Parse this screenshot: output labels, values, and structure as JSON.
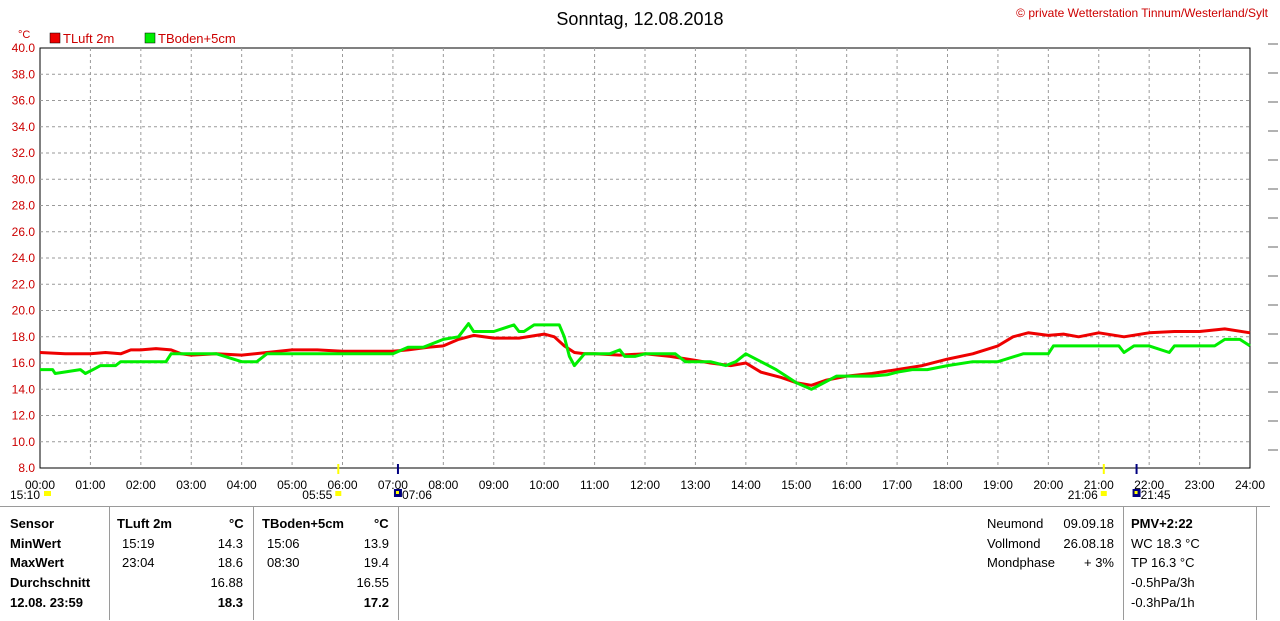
{
  "header": {
    "title": "Sonntag, 12.08.2018",
    "copyright": "© private Wetterstation Tinnum/Westerland/Sylt",
    "unit": "°C"
  },
  "chart_data": {
    "type": "line",
    "title": "Sonntag, 12.08.2018",
    "ylabel": "°C",
    "ylim": [
      8.0,
      40.0
    ],
    "yticks": [
      "8.0",
      "10.0",
      "12.0",
      "14.0",
      "16.0",
      "18.0",
      "20.0",
      "22.0",
      "24.0",
      "26.0",
      "28.0",
      "30.0",
      "32.0",
      "34.0",
      "36.0",
      "38.0",
      "40.0"
    ],
    "xlim": [
      0,
      24
    ],
    "xticks": [
      "00:00",
      "01:00",
      "02:00",
      "03:00",
      "04:00",
      "05:00",
      "06:00",
      "07:00",
      "08:00",
      "09:00",
      "10:00",
      "11:00",
      "12:00",
      "13:00",
      "14:00",
      "15:00",
      "16:00",
      "17:00",
      "18:00",
      "19:00",
      "20:00",
      "21:00",
      "22:00",
      "23:00",
      "24:00"
    ],
    "grid": true,
    "legend_position": "top-left",
    "series": [
      {
        "name": "TLuft 2m",
        "color": "#ee0000",
        "x": [
          0,
          0.5,
          1,
          1.3,
          1.6,
          1.8,
          2.0,
          2.3,
          2.6,
          2.8,
          3.0,
          3.5,
          4.0,
          4.5,
          5.0,
          5.5,
          6.0,
          6.5,
          7.0,
          7.3,
          7.7,
          8.0,
          8.3,
          8.6,
          9.0,
          9.5,
          10.0,
          10.2,
          10.4,
          10.6,
          10.8,
          11.0,
          11.5,
          12.0,
          12.5,
          13.0,
          13.3,
          13.7,
          14.0,
          14.3,
          14.7,
          15.0,
          15.3,
          15.6,
          16.0,
          16.5,
          17.0,
          17.5,
          18.0,
          18.5,
          19.0,
          19.3,
          19.6,
          20.0,
          20.3,
          20.6,
          21.0,
          21.5,
          22.0,
          22.5,
          23.0,
          23.5,
          24.0
        ],
        "y": [
          16.8,
          16.7,
          16.7,
          16.8,
          16.7,
          17.0,
          17.0,
          17.1,
          17.0,
          16.7,
          16.6,
          16.7,
          16.6,
          16.8,
          17.0,
          17.0,
          16.9,
          16.9,
          16.9,
          17.0,
          17.2,
          17.3,
          17.8,
          18.1,
          17.9,
          17.9,
          18.2,
          18.0,
          17.3,
          16.8,
          16.7,
          16.7,
          16.6,
          16.7,
          16.5,
          16.2,
          16.0,
          15.8,
          16.0,
          15.3,
          14.9,
          14.5,
          14.3,
          14.7,
          15.0,
          15.2,
          15.5,
          15.8,
          16.3,
          16.7,
          17.3,
          18.0,
          18.3,
          18.1,
          18.2,
          18.0,
          18.3,
          18.0,
          18.3,
          18.4,
          18.4,
          18.6,
          18.3
        ]
      },
      {
        "name": "TBoden+5cm",
        "color": "#00ee00",
        "x": [
          0,
          0.25,
          0.3,
          0.8,
          0.9,
          1.1,
          1.2,
          1.5,
          1.6,
          2.0,
          2.5,
          2.6,
          3.0,
          3.5,
          4.0,
          4.3,
          4.5,
          5.0,
          5.5,
          6.0,
          6.5,
          7.0,
          7.3,
          7.6,
          8.0,
          8.3,
          8.5,
          8.6,
          8.8,
          9.0,
          9.4,
          9.5,
          9.6,
          9.8,
          10.0,
          10.3,
          10.4,
          10.5,
          10.6,
          10.8,
          11.0,
          11.3,
          11.5,
          11.6,
          11.8,
          12.0,
          12.2,
          12.6,
          12.8,
          13.0,
          13.3,
          13.6,
          13.8,
          14.0,
          14.3,
          14.6,
          14.8,
          15.0,
          15.3,
          15.5,
          15.8,
          16.0,
          16.5,
          16.8,
          17.0,
          17.3,
          17.6,
          18.0,
          18.5,
          18.8,
          19.0,
          19.5,
          20.0,
          20.1,
          20.3,
          20.5,
          21.0,
          21.4,
          21.5,
          21.7,
          22.0,
          22.4,
          22.5,
          22.8,
          23.0,
          23.3,
          23.5,
          23.8,
          24.0
        ],
        "y": [
          15.5,
          15.5,
          15.2,
          15.5,
          15.2,
          15.6,
          15.8,
          15.8,
          16.1,
          16.1,
          16.1,
          16.7,
          16.7,
          16.7,
          16.1,
          16.1,
          16.7,
          16.7,
          16.7,
          16.7,
          16.7,
          16.7,
          17.2,
          17.2,
          17.8,
          18.0,
          19.0,
          18.4,
          18.4,
          18.4,
          18.9,
          18.4,
          18.4,
          18.9,
          18.9,
          18.9,
          18.0,
          16.5,
          15.8,
          16.7,
          16.7,
          16.7,
          17.0,
          16.5,
          16.5,
          16.7,
          16.7,
          16.7,
          16.1,
          16.1,
          16.1,
          15.8,
          16.1,
          16.7,
          16.1,
          15.5,
          15.0,
          14.5,
          14.0,
          14.4,
          15.0,
          15.0,
          15.0,
          15.1,
          15.3,
          15.5,
          15.5,
          15.8,
          16.1,
          16.1,
          16.1,
          16.7,
          16.7,
          17.3,
          17.3,
          17.3,
          17.3,
          17.3,
          16.8,
          17.3,
          17.3,
          16.8,
          17.3,
          17.3,
          17.3,
          17.3,
          17.8,
          17.8,
          17.3
        ]
      }
    ],
    "sun_moon": [
      "15:10",
      "05:55",
      "07:06",
      "21:06",
      "21:45"
    ]
  },
  "table": {
    "sensor_header": "Sensor",
    "row_labels": [
      "MinWert",
      "MaxWert",
      "Durchschnitt",
      "12.08. 23:59"
    ],
    "tluft": {
      "header": "TLuft 2m",
      "unit": "°C",
      "min_time": "15:19",
      "min": "14.3",
      "max_time": "23:04",
      "max": "18.6",
      "avg": "16.88",
      "last": "18.3"
    },
    "tboden": {
      "header": "TBoden+5cm",
      "unit": "°C",
      "min_time": "15:06",
      "min": "13.9",
      "max_time": "08:30",
      "max": "19.4",
      "avg": "16.55",
      "last": "17.2"
    },
    "moon": {
      "neumond_label": "Neumond",
      "neumond": "09.09.18",
      "vollmond_label": "Vollmond",
      "vollmond": "26.08.18",
      "phase_label": "Mondphase",
      "phase": "+ 3%"
    },
    "pmv": {
      "header": "PMV+2:22",
      "wc": "WC 18.3 °C",
      "tp": "TP 16.3 °C",
      "p3h": "-0.5hPa/3h",
      "p1h": "-0.3hPa/1h"
    }
  }
}
